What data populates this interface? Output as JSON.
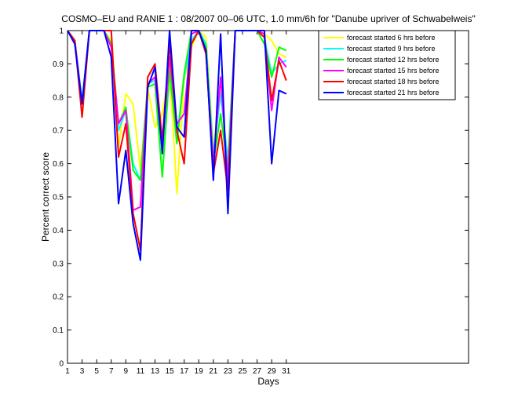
{
  "chart_data": {
    "type": "line",
    "title": "COSMO–EU and RANIE 1 : 08/2007 00–06 UTC, 1.0 mm/6h for \"Danube upriver of Schwabelweis\"",
    "xlabel": "Days",
    "ylabel": "Percent correct score",
    "xlim": [
      1,
      56
    ],
    "ylim": [
      0,
      1
    ],
    "xticks": [
      1,
      3,
      5,
      7,
      9,
      11,
      13,
      15,
      17,
      19,
      21,
      23,
      25,
      27,
      29,
      31
    ],
    "yticks": [
      0,
      0.1,
      0.2,
      0.3,
      0.4,
      0.5,
      0.6,
      0.7,
      0.8,
      0.9,
      1
    ],
    "ytick_labels": [
      "0",
      "0.1",
      "0.2",
      "0.3",
      "0.4",
      "0.5",
      "0.6",
      "0.7",
      "0.8",
      "0.9",
      "1"
    ],
    "grid": false,
    "legend_position": "top-right",
    "x": [
      1,
      2,
      3,
      4,
      5,
      6,
      7,
      8,
      9,
      10,
      11,
      12,
      13,
      14,
      15,
      16,
      17,
      18,
      19,
      20,
      21,
      22,
      23,
      24,
      25,
      26,
      27,
      28,
      29,
      30,
      31
    ],
    "series": [
      {
        "name": "forecast started 6 hrs before",
        "color": "#ffff00",
        "values": [
          1,
          0.97,
          0.78,
          1,
          1,
          1,
          0.97,
          0.65,
          0.81,
          0.78,
          0.58,
          0.83,
          0.71,
          0.75,
          0.89,
          0.51,
          0.85,
          0.95,
          1,
          0.98,
          0.65,
          0.82,
          0.6,
          1,
          1,
          1,
          1,
          0.99,
          0.97,
          0.93,
          0.92
        ]
      },
      {
        "name": "forecast started 9 hrs before",
        "color": "#00ffff",
        "values": [
          1,
          0.97,
          0.79,
          1,
          1,
          1,
          0.96,
          0.7,
          0.76,
          0.6,
          0.55,
          0.84,
          0.85,
          0.64,
          0.9,
          0.68,
          0.86,
          0.97,
          1,
          0.96,
          0.63,
          0.81,
          0.61,
          1,
          1,
          1,
          1,
          0.98,
          0.87,
          0.9,
          0.91
        ]
      },
      {
        "name": "forecast started 12 hrs before",
        "color": "#00ff00",
        "values": [
          1,
          0.97,
          0.78,
          1,
          1,
          1,
          0.96,
          0.72,
          0.77,
          0.58,
          0.55,
          0.83,
          0.84,
          0.56,
          0.88,
          0.66,
          0.87,
          1,
          1,
          0.95,
          0.6,
          0.75,
          0.58,
          1,
          1,
          1,
          1,
          0.96,
          0.86,
          0.95,
          0.94
        ]
      },
      {
        "name": "forecast started 15 hrs before",
        "color": "#ff00ff",
        "values": [
          1,
          0.97,
          0.78,
          1,
          1,
          1,
          0.95,
          0.72,
          0.76,
          0.46,
          0.47,
          0.84,
          0.86,
          0.65,
          0.92,
          0.72,
          0.75,
          0.99,
          1,
          0.93,
          0.6,
          0.86,
          0.55,
          1,
          1,
          1,
          1,
          0.99,
          0.76,
          0.92,
          0.89
        ]
      },
      {
        "name": "forecast started 18 hrs before",
        "color": "#ff0000",
        "values": [
          1,
          0.97,
          0.74,
          1,
          1,
          1,
          1,
          0.62,
          0.72,
          0.45,
          0.34,
          0.86,
          0.9,
          0.67,
          0.96,
          0.7,
          0.6,
          0.96,
          1,
          0.93,
          0.57,
          0.7,
          0.52,
          1,
          1,
          1,
          1,
          0.98,
          0.79,
          0.91,
          0.85
        ]
      },
      {
        "name": "forecast started 21 hrs before",
        "color": "#0000ff",
        "values": [
          1,
          0.96,
          0.78,
          1,
          1,
          1,
          0.92,
          0.48,
          0.64,
          0.42,
          0.31,
          0.83,
          0.89,
          0.63,
          1,
          0.71,
          0.68,
          1,
          1,
          0.94,
          0.55,
          0.99,
          0.45,
          1,
          1,
          1,
          1,
          1,
          0.6,
          0.82,
          0.81
        ]
      }
    ]
  }
}
